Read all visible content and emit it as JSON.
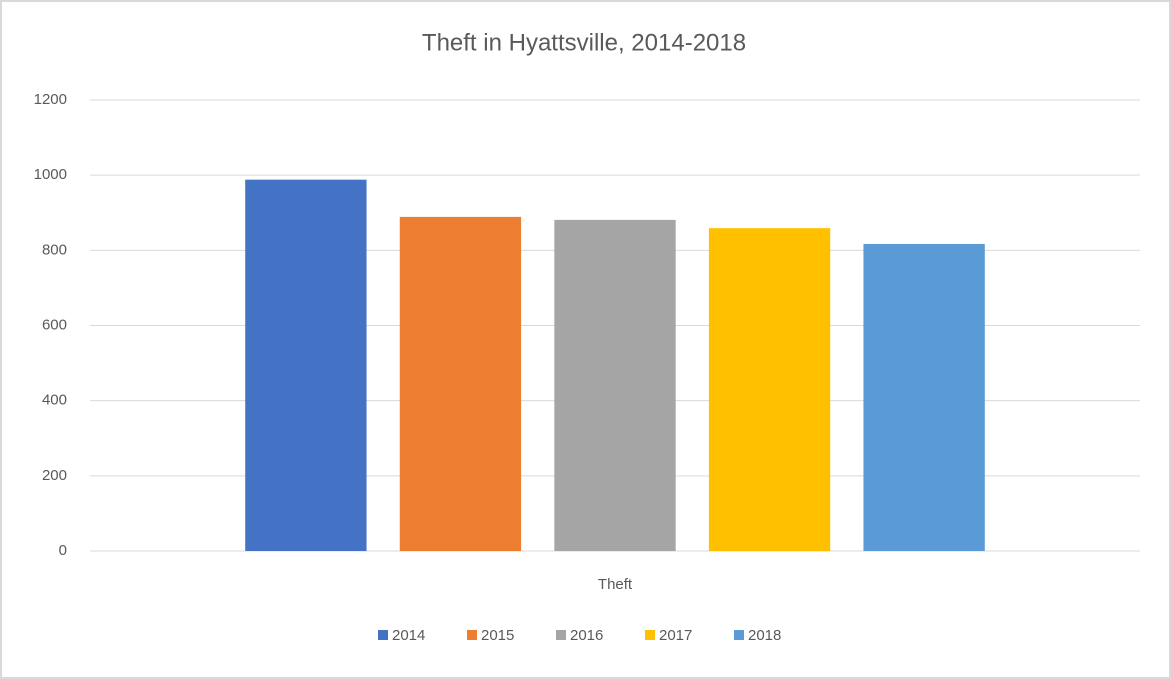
{
  "chart_data": {
    "type": "bar",
    "title": "Theft in Hyattsville, 2014-2018",
    "categories": [
      "Theft"
    ],
    "series": [
      {
        "name": "2014",
        "color": "#4472c4",
        "values": [
          988
        ]
      },
      {
        "name": "2015",
        "color": "#ed7d31",
        "values": [
          889
        ]
      },
      {
        "name": "2016",
        "color": "#a5a5a5",
        "values": [
          881
        ]
      },
      {
        "name": "2017",
        "color": "#ffc000",
        "values": [
          859
        ]
      },
      {
        "name": "2018",
        "color": "#5b9bd5",
        "values": [
          817
        ]
      }
    ],
    "ylim": [
      0,
      1200
    ],
    "yticks": [
      0,
      200,
      400,
      600,
      800,
      1000,
      1200
    ],
    "grid": true,
    "legend": "bottom"
  }
}
